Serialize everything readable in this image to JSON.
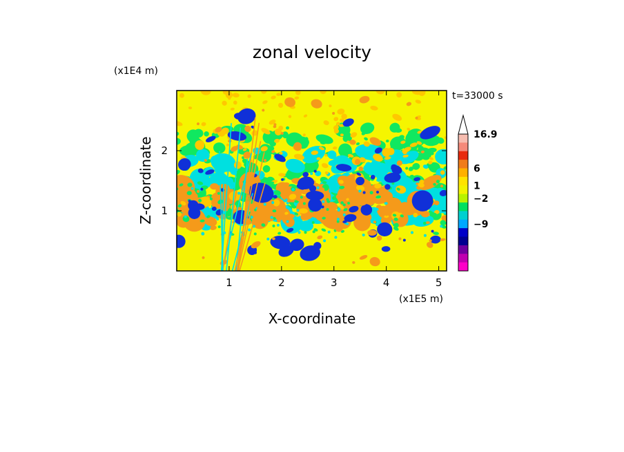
{
  "chart_data": {
    "type": "heatmap",
    "title": "zonal velocity",
    "xlabel": "X-coordinate",
    "ylabel": "Z-coordinate",
    "x_scale_label": "(x1E5 m)",
    "y_scale_label": "(x1E4 m)",
    "time_label": "t=33000 s",
    "xlim": [
      0,
      5.15
    ],
    "ylim": [
      0,
      3.0
    ],
    "xticks": [
      "1",
      "2",
      "3",
      "4",
      "5"
    ],
    "yticks": [
      "1",
      "2"
    ],
    "colorbar": {
      "labels": [
        "16.9",
        "6",
        "1",
        "-2",
        "-9"
      ],
      "colors": [
        "#f7bdb0",
        "#f58a7a",
        "#e82a0e",
        "#f07c1a",
        "#ffb000",
        "#ffe300",
        "#f2f200",
        "#b8f200",
        "#00e060",
        "#00d0d0",
        "#00a8ff",
        "#0000c8",
        "#000090",
        "#7000a0",
        "#c000b0",
        "#ff00c8"
      ]
    },
    "bands": [
      {
        "name": "cyan",
        "color": "#00e0e0"
      },
      {
        "name": "green",
        "color": "#10e860"
      },
      {
        "name": "yellow",
        "color": "#f5f500"
      },
      {
        "name": "gold",
        "color": "#ffc800"
      },
      {
        "name": "orange",
        "color": "#f59a1a"
      },
      {
        "name": "blue",
        "color": "#1030d8"
      }
    ]
  }
}
